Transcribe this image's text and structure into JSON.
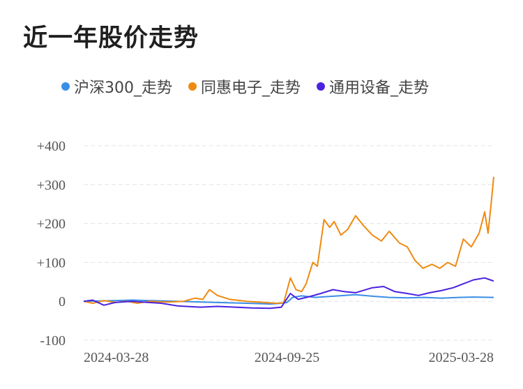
{
  "title": "近一年股价走势",
  "legend": [
    {
      "name": "沪深300_走势",
      "color": "#3a8ee6"
    },
    {
      "name": "同惠电子_走势",
      "color": "#ef8a10"
    },
    {
      "name": "通用设备_走势",
      "color": "#4b22e0"
    }
  ],
  "chart_data": {
    "type": "line",
    "title": "近一年股价走势",
    "ylim": [
      -100,
      400
    ],
    "y_ticks": [
      "+400",
      "+300",
      "+200",
      "+100",
      "0",
      "-100"
    ],
    "y_tick_values": [
      400,
      300,
      200,
      100,
      0,
      -100
    ],
    "x_ticks": [
      "2024-03-28",
      "2024-09-25",
      "2025-03-28"
    ],
    "x_range": [
      "2024-03-28",
      "2025-03-28"
    ],
    "grid": true,
    "legend_position": "top",
    "series": [
      {
        "name": "沪深300_走势",
        "color": "#3a8ee6",
        "points": [
          [
            "2024-03-28",
            0
          ],
          [
            "2024-04-15",
            1
          ],
          [
            "2024-05-10",
            3
          ],
          [
            "2024-06-05",
            1
          ],
          [
            "2024-07-01",
            -1
          ],
          [
            "2024-07-25",
            -3
          ],
          [
            "2024-08-20",
            -5
          ],
          [
            "2024-09-10",
            -7
          ],
          [
            "2024-09-20",
            -5
          ],
          [
            "2024-09-25",
            -3
          ],
          [
            "2024-09-30",
            10
          ],
          [
            "2024-10-08",
            14
          ],
          [
            "2024-10-20",
            10
          ],
          [
            "2024-11-10",
            14
          ],
          [
            "2024-11-25",
            17
          ],
          [
            "2024-12-10",
            13
          ],
          [
            "2024-12-25",
            10
          ],
          [
            "2025-01-10",
            9
          ],
          [
            "2025-01-25",
            10
          ],
          [
            "2025-02-10",
            8
          ],
          [
            "2025-02-25",
            10
          ],
          [
            "2025-03-10",
            11
          ],
          [
            "2025-03-28",
            10
          ]
        ]
      },
      {
        "name": "同惠电子_走势",
        "color": "#ef8a10",
        "points": [
          [
            "2024-03-28",
            0
          ],
          [
            "2024-04-05",
            -5
          ],
          [
            "2024-04-15",
            2
          ],
          [
            "2024-04-25",
            -3
          ],
          [
            "2024-05-05",
            0
          ],
          [
            "2024-05-15",
            -5
          ],
          [
            "2024-05-25",
            0
          ],
          [
            "2024-06-10",
            -2
          ],
          [
            "2024-06-25",
            0
          ],
          [
            "2024-07-05",
            8
          ],
          [
            "2024-07-12",
            5
          ],
          [
            "2024-07-18",
            30
          ],
          [
            "2024-07-25",
            15
          ],
          [
            "2024-08-05",
            5
          ],
          [
            "2024-08-20",
            0
          ],
          [
            "2024-09-05",
            -3
          ],
          [
            "2024-09-15",
            -5
          ],
          [
            "2024-09-22",
            -4
          ],
          [
            "2024-09-28",
            60
          ],
          [
            "2024-10-03",
            30
          ],
          [
            "2024-10-08",
            25
          ],
          [
            "2024-10-12",
            45
          ],
          [
            "2024-10-18",
            100
          ],
          [
            "2024-10-22",
            90
          ],
          [
            "2024-10-28",
            210
          ],
          [
            "2024-11-02",
            190
          ],
          [
            "2024-11-06",
            205
          ],
          [
            "2024-11-12",
            170
          ],
          [
            "2024-11-18",
            185
          ],
          [
            "2024-11-25",
            220
          ],
          [
            "2024-12-02",
            195
          ],
          [
            "2024-12-10",
            170
          ],
          [
            "2024-12-18",
            155
          ],
          [
            "2024-12-25",
            180
          ],
          [
            "2025-01-03",
            150
          ],
          [
            "2025-01-10",
            140
          ],
          [
            "2025-01-17",
            105
          ],
          [
            "2025-01-24",
            85
          ],
          [
            "2025-02-01",
            95
          ],
          [
            "2025-02-08",
            85
          ],
          [
            "2025-02-15",
            100
          ],
          [
            "2025-02-22",
            90
          ],
          [
            "2025-03-01",
            160
          ],
          [
            "2025-03-08",
            140
          ],
          [
            "2025-03-15",
            175
          ],
          [
            "2025-03-20",
            230
          ],
          [
            "2025-03-23",
            175
          ],
          [
            "2025-03-26",
            260
          ],
          [
            "2025-03-28",
            320
          ]
        ]
      },
      {
        "name": "通用设备_走势",
        "color": "#4b22e0",
        "points": [
          [
            "2024-03-28",
            0
          ],
          [
            "2024-04-05",
            3
          ],
          [
            "2024-04-15",
            -10
          ],
          [
            "2024-04-25",
            -3
          ],
          [
            "2024-05-10",
            0
          ],
          [
            "2024-05-25",
            -3
          ],
          [
            "2024-06-05",
            -5
          ],
          [
            "2024-06-20",
            -12
          ],
          [
            "2024-07-10",
            -15
          ],
          [
            "2024-07-25",
            -13
          ],
          [
            "2024-08-10",
            -15
          ],
          [
            "2024-08-25",
            -17
          ],
          [
            "2024-09-10",
            -18
          ],
          [
            "2024-09-20",
            -15
          ],
          [
            "2024-09-28",
            20
          ],
          [
            "2024-10-05",
            5
          ],
          [
            "2024-10-15",
            12
          ],
          [
            "2024-10-25",
            20
          ],
          [
            "2024-11-05",
            30
          ],
          [
            "2024-11-15",
            25
          ],
          [
            "2024-11-25",
            22
          ],
          [
            "2024-12-10",
            35
          ],
          [
            "2024-12-20",
            38
          ],
          [
            "2024-12-30",
            25
          ],
          [
            "2025-01-10",
            20
          ],
          [
            "2025-01-20",
            15
          ],
          [
            "2025-01-30",
            22
          ],
          [
            "2025-02-10",
            28
          ],
          [
            "2025-02-20",
            35
          ],
          [
            "2025-03-01",
            45
          ],
          [
            "2025-03-10",
            55
          ],
          [
            "2025-03-20",
            60
          ],
          [
            "2025-03-25",
            55
          ],
          [
            "2025-03-28",
            52
          ]
        ]
      }
    ]
  }
}
